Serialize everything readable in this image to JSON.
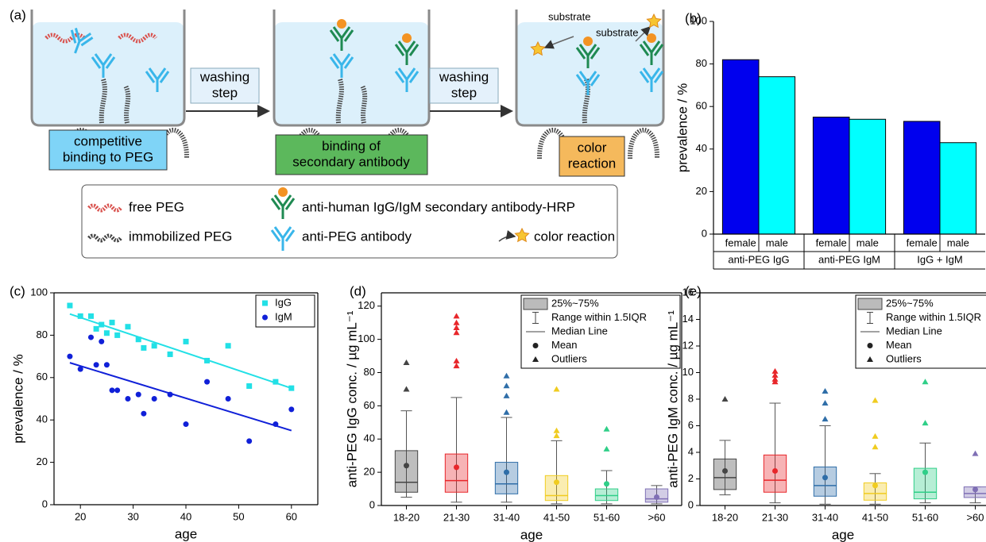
{
  "diagram": {
    "panel": "(a)",
    "steps": [
      [
        "competitive",
        "binding to PEG"
      ],
      [
        "binding of",
        "secondary antibody"
      ],
      [
        "color",
        "reaction"
      ]
    ],
    "arrows": [
      [
        "washing",
        "step"
      ],
      [
        "washing",
        "step"
      ]
    ],
    "substrate": [
      "substrate",
      "substrate"
    ],
    "legend": [
      "free PEG",
      "immobilized PEG",
      "anti-human IgG/IgM secondary antibody-HRP",
      "anti-PEG antibody",
      "color reaction"
    ]
  },
  "chart_data": [
    {
      "type": "bar",
      "panel": "(b)",
      "ylabel": "prevalence / %",
      "categories": [
        "anti-PEG IgG",
        "anti-PEG IgM",
        "IgG + IgM"
      ],
      "series": [
        {
          "name": "female",
          "color": "#0000ee",
          "values": [
            82,
            55,
            53
          ]
        },
        {
          "name": "male",
          "color": "#00ffff",
          "values": [
            74,
            54,
            43
          ]
        }
      ],
      "ylim": [
        0,
        100
      ],
      "yticks": [
        0,
        20,
        40,
        60,
        80,
        100
      ]
    },
    {
      "type": "scatter",
      "panel": "(c)",
      "xlabel": "age",
      "ylabel": "prevalence / %",
      "xlim": [
        15,
        65
      ],
      "xticks": [
        20,
        30,
        40,
        50,
        60
      ],
      "ylim": [
        0,
        100
      ],
      "yticks": [
        0,
        20,
        40,
        60,
        80,
        100
      ],
      "legend": "top-right",
      "series": [
        {
          "name": "IgG",
          "color": "#22e0e6",
          "marker": "square",
          "x": [
            18,
            20,
            22,
            23,
            24,
            25,
            26,
            27,
            29,
            31,
            32,
            34,
            37,
            40,
            44,
            48,
            52,
            57,
            60
          ],
          "values": [
            94,
            89,
            89,
            83,
            85,
            81,
            86,
            80,
            84,
            78,
            74,
            75,
            71,
            77,
            68,
            75,
            56,
            58,
            55
          ],
          "fit": {
            "x": [
              18,
              60
            ],
            "values": [
              90,
              55
            ]
          }
        },
        {
          "name": "IgM",
          "color": "#1020d8",
          "marker": "circle",
          "x": [
            18,
            20,
            22,
            23,
            24,
            25,
            26,
            27,
            29,
            31,
            32,
            34,
            37,
            40,
            44,
            48,
            52,
            57,
            60
          ],
          "values": [
            70,
            64,
            79,
            66,
            77,
            66,
            54,
            54,
            50,
            52,
            43,
            50,
            52,
            38,
            58,
            50,
            30,
            38,
            45
          ],
          "fit": {
            "x": [
              18,
              60
            ],
            "values": [
              67,
              35
            ]
          }
        }
      ]
    },
    {
      "type": "box",
      "panel": "(d)",
      "xlabel": "age",
      "ylabel": "anti-PEG IgG conc. / µg mL⁻¹",
      "ylim": [
        0,
        128
      ],
      "yticks": [
        0,
        20,
        40,
        60,
        80,
        100,
        120
      ],
      "legend": [
        "25%~75%",
        "Range within 1.5IQR",
        "Median Line",
        "Mean",
        "Outliers"
      ],
      "categories": [
        "18-20",
        "21-30",
        "31-40",
        "41-50",
        "51-60",
        ">60"
      ],
      "colors": [
        "#444444",
        "#e8262a",
        "#2f6ea8",
        "#f0cc20",
        "#2fcf88",
        "#7f6fb5"
      ],
      "boxes": [
        {
          "whisker_low": 5,
          "q1": 8,
          "median": 14,
          "q3": 33,
          "whisker_high": 57,
          "mean": 24,
          "outliers": [
            70,
            86
          ]
        },
        {
          "whisker_low": 2,
          "q1": 8,
          "median": 15,
          "q3": 31,
          "whisker_high": 65,
          "mean": 23,
          "outliers": [
            84,
            87,
            104,
            107,
            110,
            114
          ]
        },
        {
          "whisker_low": 2,
          "q1": 7,
          "median": 13,
          "q3": 26,
          "whisker_high": 53,
          "mean": 20,
          "outliers": [
            56,
            66,
            72,
            78
          ]
        },
        {
          "whisker_low": 1,
          "q1": 3,
          "median": 6,
          "q3": 18,
          "whisker_high": 39,
          "mean": 14,
          "outliers": [
            42,
            45,
            70
          ]
        },
        {
          "whisker_low": 1,
          "q1": 3,
          "median": 6,
          "q3": 10,
          "whisker_high": 21,
          "mean": 13,
          "outliers": [
            34,
            46
          ]
        },
        {
          "whisker_low": 1,
          "q1": 2,
          "median": 4,
          "q3": 10,
          "whisker_high": 12,
          "mean": 5,
          "outliers": []
        }
      ]
    },
    {
      "type": "box",
      "panel": "(e)",
      "xlabel": "age",
      "ylabel": "anti-PEG IgM conc. / µg mL⁻¹",
      "ylim": [
        0,
        16
      ],
      "yticks": [
        0,
        2,
        4,
        6,
        8,
        10,
        12,
        14,
        16
      ],
      "legend": [
        "25%~75%",
        "Range within 1.5IQR",
        "Median Line",
        "Mean",
        "Outliers"
      ],
      "categories": [
        "18-20",
        "21-30",
        "31-40",
        "41-50",
        "51-60",
        ">60"
      ],
      "colors": [
        "#444444",
        "#e8262a",
        "#2f6ea8",
        "#f0cc20",
        "#2fcf88",
        "#7f6fb5"
      ],
      "boxes": [
        {
          "whisker_low": 0.8,
          "q1": 1.2,
          "median": 2.1,
          "q3": 3.5,
          "whisker_high": 4.9,
          "mean": 2.6,
          "outliers": [
            8.0
          ]
        },
        {
          "whisker_low": 0.2,
          "q1": 1.0,
          "median": 1.9,
          "q3": 3.8,
          "whisker_high": 7.7,
          "mean": 2.6,
          "outliers": [
            9.3,
            9.5,
            9.8,
            10.1
          ]
        },
        {
          "whisker_low": 0.1,
          "q1": 0.7,
          "median": 1.5,
          "q3": 2.9,
          "whisker_high": 6.0,
          "mean": 2.1,
          "outliers": [
            6.5,
            7.7,
            8.6
          ]
        },
        {
          "whisker_low": 0.1,
          "q1": 0.4,
          "median": 0.9,
          "q3": 1.7,
          "whisker_high": 2.4,
          "mean": 1.5,
          "outliers": [
            4.4,
            5.2,
            7.9
          ]
        },
        {
          "whisker_low": 0.2,
          "q1": 0.5,
          "median": 1.0,
          "q3": 2.8,
          "whisker_high": 4.7,
          "mean": 2.5,
          "outliers": [
            6.2,
            9.3
          ]
        },
        {
          "whisker_low": 0.2,
          "q1": 0.6,
          "median": 0.9,
          "q3": 1.4,
          "whisker_high": 1.4,
          "mean": 1.2,
          "outliers": [
            3.9
          ]
        }
      ]
    }
  ]
}
